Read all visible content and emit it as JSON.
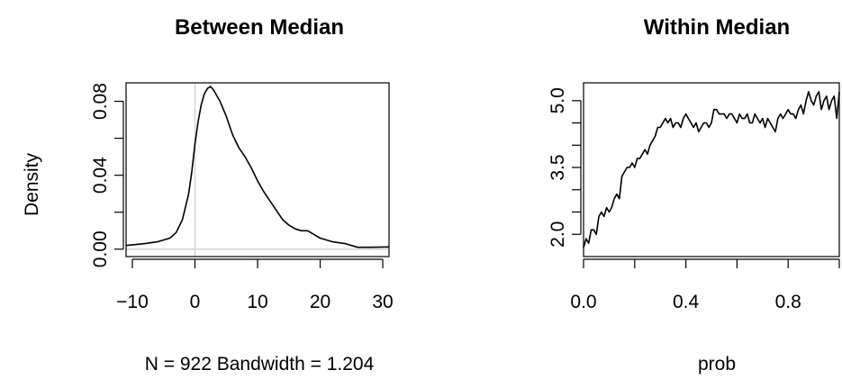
{
  "chart_data": [
    {
      "type": "line",
      "title": "Between Median",
      "xlabel": "N = 922   Bandwidth = 1.204",
      "ylabel": "Density",
      "xlim": [
        -11,
        31
      ],
      "ylim": [
        -0.004,
        0.09
      ],
      "xticks": [
        -10,
        0,
        10,
        20,
        30
      ],
      "xtick_labels": [
        "−10",
        "0",
        "10",
        "20",
        "30"
      ],
      "yticks": [
        0.0,
        0.02,
        0.04,
        0.06,
        0.08
      ],
      "ytick_labels": [
        "0.00",
        "",
        "0.04",
        "",
        "0.08"
      ],
      "reference_lines": {
        "vertical": 0,
        "horizontal": 0,
        "color": "#d3d3d3"
      },
      "series": [
        {
          "x": [
            -11,
            -8,
            -6,
            -4,
            -3,
            -2,
            -1,
            -0.5,
            0,
            0.5,
            1,
            1.5,
            2,
            2.5,
            3,
            3.5,
            4,
            5,
            6,
            7,
            8,
            9,
            10,
            11,
            12,
            13,
            14,
            15,
            16,
            17,
            18,
            19,
            20,
            22,
            24,
            26,
            28,
            31
          ],
          "y": [
            0.002,
            0.003,
            0.004,
            0.006,
            0.009,
            0.016,
            0.03,
            0.042,
            0.057,
            0.069,
            0.078,
            0.084,
            0.087,
            0.088,
            0.086,
            0.083,
            0.08,
            0.072,
            0.062,
            0.055,
            0.05,
            0.044,
            0.037,
            0.031,
            0.026,
            0.021,
            0.016,
            0.013,
            0.011,
            0.01,
            0.01,
            0.008,
            0.006,
            0.004,
            0.003,
            0.001,
            0.001,
            0.0012
          ]
        }
      ]
    },
    {
      "type": "line",
      "title": "Within Median",
      "xlabel": "prob",
      "ylabel": "",
      "xlim": [
        0,
        1
      ],
      "ylim": [
        1.5,
        5.4
      ],
      "xticks": [
        0.0,
        0.2,
        0.4,
        0.6,
        0.8,
        1.0
      ],
      "xtick_labels": [
        "0.0",
        "",
        "0.4",
        "",
        "0.8",
        ""
      ],
      "yticks": [
        2.0,
        2.5,
        3.0,
        3.5,
        4.0,
        4.5,
        5.0
      ],
      "ytick_labels": [
        "2.0",
        "",
        "",
        "3.5",
        "",
        "",
        "5.0"
      ],
      "series": [
        {
          "x": [
            0.0,
            0.01,
            0.02,
            0.03,
            0.04,
            0.05,
            0.06,
            0.07,
            0.08,
            0.09,
            0.1,
            0.11,
            0.12,
            0.13,
            0.14,
            0.15,
            0.16,
            0.17,
            0.18,
            0.19,
            0.2,
            0.21,
            0.22,
            0.23,
            0.24,
            0.25,
            0.26,
            0.27,
            0.28,
            0.29,
            0.3,
            0.31,
            0.32,
            0.33,
            0.34,
            0.35,
            0.36,
            0.37,
            0.38,
            0.39,
            0.4,
            0.41,
            0.42,
            0.43,
            0.44,
            0.45,
            0.46,
            0.47,
            0.48,
            0.49,
            0.5,
            0.51,
            0.52,
            0.53,
            0.54,
            0.55,
            0.56,
            0.57,
            0.58,
            0.59,
            0.6,
            0.61,
            0.62,
            0.63,
            0.64,
            0.65,
            0.66,
            0.67,
            0.68,
            0.69,
            0.7,
            0.71,
            0.72,
            0.73,
            0.74,
            0.75,
            0.76,
            0.77,
            0.78,
            0.79,
            0.8,
            0.81,
            0.82,
            0.83,
            0.84,
            0.85,
            0.86,
            0.87,
            0.88,
            0.89,
            0.9,
            0.91,
            0.92,
            0.93,
            0.94,
            0.95,
            0.96,
            0.97,
            0.98,
            0.99,
            1.0
          ],
          "y": [
            1.7,
            1.9,
            1.8,
            2.1,
            2.1,
            2.0,
            2.4,
            2.5,
            2.4,
            2.6,
            2.5,
            2.6,
            2.8,
            2.9,
            2.8,
            3.3,
            3.4,
            3.5,
            3.5,
            3.6,
            3.5,
            3.7,
            3.7,
            3.8,
            3.9,
            3.8,
            4.0,
            4.1,
            4.2,
            4.4,
            4.4,
            4.5,
            4.6,
            4.5,
            4.6,
            4.4,
            4.5,
            4.5,
            4.4,
            4.6,
            4.7,
            4.6,
            4.5,
            4.4,
            4.5,
            4.3,
            4.4,
            4.5,
            4.5,
            4.4,
            4.5,
            4.8,
            4.8,
            4.7,
            4.7,
            4.7,
            4.6,
            4.7,
            4.7,
            4.6,
            4.5,
            4.7,
            4.6,
            4.6,
            4.7,
            4.5,
            4.5,
            4.7,
            4.6,
            4.5,
            4.6,
            4.4,
            4.6,
            4.5,
            4.4,
            4.3,
            4.6,
            4.7,
            4.6,
            4.7,
            4.8,
            4.7,
            4.7,
            4.6,
            4.8,
            4.9,
            4.7,
            5.0,
            5.2,
            5.0,
            4.9,
            5.1,
            5.2,
            4.8,
            5.0,
            5.1,
            4.8,
            5.0,
            5.1,
            4.6,
            5.2
          ]
        }
      ]
    }
  ]
}
